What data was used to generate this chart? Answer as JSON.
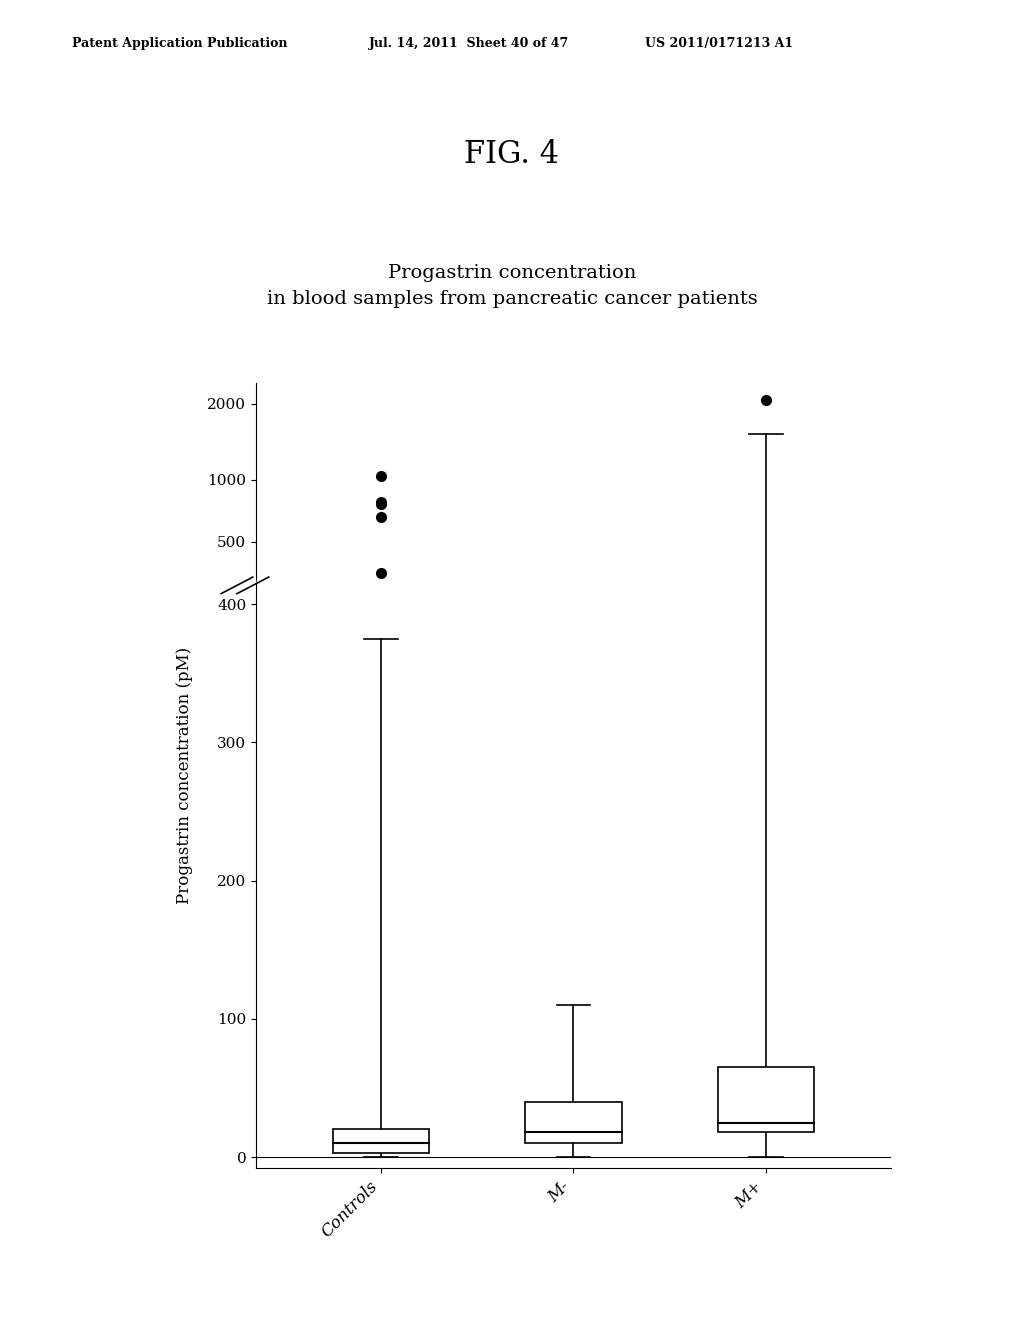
{
  "title_line1": "Progastrin concentration",
  "title_line2": "in blood samples from pancreatic cancer patients",
  "ylabel": "Progastrin concentration (pM)",
  "categories": [
    "Controls",
    "M-",
    "M+"
  ],
  "controls": {
    "q1": 3,
    "median": 10,
    "q3": 20,
    "whisker_low": 0,
    "whisker_high": 375,
    "outliers": [
      450,
      700,
      800,
      820,
      1050
    ]
  },
  "m_minus": {
    "q1": 10,
    "median": 18,
    "q3": 40,
    "whisker_low": 0,
    "whisker_high": 110,
    "outliers": []
  },
  "m_plus": {
    "q1": 18,
    "median": 25,
    "q3": 65,
    "whisker_low": 0,
    "whisker_high": 1600,
    "outliers": [
      2050
    ]
  },
  "header_left": "Patent Application Publication",
  "header_mid": "Jul. 14, 2011  Sheet 40 of 47",
  "header_right": "US 2011/0171213 A1",
  "fig_label": "FIG. 4",
  "background_color": "#ffffff",
  "box_color": "#ffffff",
  "edge_color": "#000000",
  "ylabel_fontsize": 12,
  "title_fontsize": 14,
  "tick_fontsize": 11,
  "xlabel_fontsize": 12,
  "header_fontsize": 9,
  "fig_label_fontsize": 22
}
